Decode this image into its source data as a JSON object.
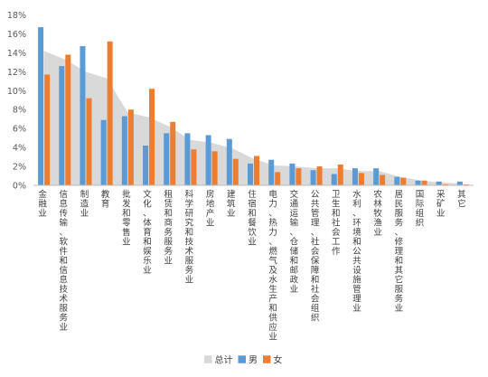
{
  "chart_data": {
    "type": "bar",
    "categories": [
      "金融业",
      "信息传输、软件和信息技术服务业",
      "制造业",
      "教育",
      "批发和零售业",
      "文化、体育和娱乐业",
      "租赁和商务服务业",
      "科学研究和技术服务业",
      "房地产业",
      "建筑业",
      "住宿和餐饮业",
      "电力、热力、燃气及水生产和供应业",
      "交通运输、仓储和邮政业",
      "公共管理、社会保障和社会组织",
      "卫生和社会工作",
      "水利、环境和公共设施管理业",
      "农林牧渔业",
      "居民服务、修理和其它服务业",
      "国际组织",
      "采矿业",
      "其它"
    ],
    "series": [
      {
        "name": "总计",
        "kind": "area",
        "color": "#d9d9d9",
        "values": [
          14.2,
          13.3,
          12.0,
          11.3,
          7.7,
          7.2,
          6.2,
          4.8,
          4.5,
          3.9,
          2.8,
          2.1,
          2.0,
          1.8,
          1.8,
          1.5,
          1.5,
          0.9,
          0.5,
          0.3,
          0.2
        ]
      },
      {
        "name": "男",
        "kind": "bar",
        "color": "#5b9bd5",
        "values": [
          16.7,
          12.6,
          14.7,
          6.9,
          7.3,
          4.2,
          5.5,
          5.5,
          5.3,
          4.9,
          2.3,
          2.7,
          2.3,
          1.6,
          1.2,
          1.8,
          1.8,
          0.9,
          0.5,
          0.4,
          0.4
        ]
      },
      {
        "name": "女",
        "kind": "bar",
        "color": "#ed7d31",
        "values": [
          11.7,
          13.8,
          9.2,
          15.2,
          8.0,
          10.2,
          6.7,
          3.8,
          3.6,
          2.8,
          3.1,
          1.4,
          1.8,
          2.0,
          2.2,
          1.3,
          1.1,
          0.8,
          0.5,
          0.1,
          0.1
        ]
      }
    ],
    "ylim": [
      0,
      18
    ],
    "yticks": [
      "0%",
      "2%",
      "4%",
      "6%",
      "8%",
      "10%",
      "12%",
      "14%",
      "16%",
      "18%"
    ],
    "legend_position": "bottom",
    "grid": false
  }
}
